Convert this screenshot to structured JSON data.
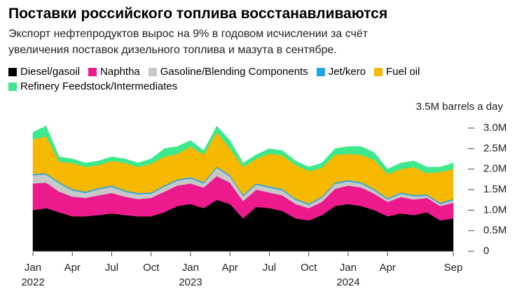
{
  "chart_data": {
    "type": "stacked_area",
    "title": "Поставки российского топлива восстанавливаются",
    "subtitle": [
      "Экспорт нефтепродуктов вырос на 9% в годовом исчислении за счёт",
      "увеличения поставок дизельного топлива и мазута в сентябре."
    ],
    "y_axis_label": "3.5M barrels a day",
    "categories": [
      "Jan",
      null,
      null,
      "Apr",
      null,
      null,
      "Jul",
      null,
      null,
      "Oct",
      null,
      null,
      "Jan",
      null,
      null,
      "Apr",
      null,
      null,
      "Jul",
      null,
      null,
      "Oct",
      null,
      null,
      "Jan",
      null,
      null,
      "Apr",
      null,
      null,
      null,
      null,
      "Sep"
    ],
    "x_year_labels": [
      "2022",
      null,
      null,
      null,
      null,
      null,
      null,
      null,
      null,
      null,
      null,
      null,
      "2023",
      null,
      null,
      null,
      null,
      null,
      null,
      null,
      null,
      null,
      null,
      null,
      "2024",
      null,
      null,
      null,
      null,
      null,
      null,
      null,
      null
    ],
    "series": [
      {
        "name": "Diesel/gasoil",
        "color": "#000000",
        "values": [
          1.0,
          1.05,
          0.95,
          0.85,
          0.85,
          0.88,
          0.92,
          0.88,
          0.85,
          0.85,
          0.95,
          1.1,
          1.15,
          1.05,
          1.25,
          1.15,
          0.8,
          1.08,
          1.05,
          0.98,
          0.8,
          0.75,
          0.88,
          1.1,
          1.15,
          1.1,
          1.0,
          0.85,
          0.92,
          0.88,
          0.95,
          0.75,
          0.8
        ]
      },
      {
        "name": "Naphtha",
        "color": "#ec1a8c",
        "values": [
          0.65,
          0.62,
          0.5,
          0.48,
          0.45,
          0.48,
          0.5,
          0.45,
          0.42,
          0.45,
          0.5,
          0.5,
          0.5,
          0.5,
          0.58,
          0.52,
          0.42,
          0.42,
          0.38,
          0.38,
          0.35,
          0.3,
          0.32,
          0.42,
          0.45,
          0.45,
          0.4,
          0.35,
          0.4,
          0.38,
          0.35,
          0.35,
          0.38
        ]
      },
      {
        "name": "Gasoline/Blending Components",
        "color": "#c8c8c8",
        "values": [
          0.2,
          0.2,
          0.2,
          0.15,
          0.12,
          0.15,
          0.15,
          0.12,
          0.12,
          0.1,
          0.12,
          0.12,
          0.12,
          0.1,
          0.2,
          0.15,
          0.12,
          0.12,
          0.12,
          0.12,
          0.1,
          0.08,
          0.1,
          0.12,
          0.1,
          0.1,
          0.08,
          0.06,
          0.08,
          0.08,
          0.05,
          0.05,
          0.06
        ]
      },
      {
        "name": "Jet/kero",
        "color": "#1ca6e8",
        "values": [
          0.03,
          0.03,
          0.03,
          0.03,
          0.03,
          0.03,
          0.03,
          0.03,
          0.03,
          0.03,
          0.03,
          0.03,
          0.03,
          0.03,
          0.03,
          0.03,
          0.03,
          0.03,
          0.03,
          0.03,
          0.03,
          0.03,
          0.03,
          0.03,
          0.03,
          0.03,
          0.03,
          0.03,
          0.03,
          0.03,
          0.03,
          0.03,
          0.03
        ]
      },
      {
        "name": "Fuel oil",
        "color": "#f7b800",
        "values": [
          0.84,
          0.9,
          0.5,
          0.64,
          0.6,
          0.56,
          0.6,
          0.67,
          0.63,
          0.7,
          0.7,
          0.62,
          0.75,
          0.67,
          0.84,
          0.65,
          0.68,
          0.6,
          0.8,
          0.82,
          0.82,
          0.79,
          0.7,
          0.68,
          0.64,
          0.67,
          0.71,
          0.59,
          0.57,
          0.68,
          0.52,
          0.75,
          0.73
        ]
      },
      {
        "name": "Refinery Feedstock/Intermediates",
        "color": "#3ee88c",
        "values": [
          0.18,
          0.25,
          0.12,
          0.1,
          0.1,
          0.1,
          0.1,
          0.1,
          0.1,
          0.12,
          0.2,
          0.18,
          0.15,
          0.1,
          0.15,
          0.2,
          0.1,
          0.1,
          0.12,
          0.12,
          0.1,
          0.1,
          0.12,
          0.15,
          0.18,
          0.2,
          0.18,
          0.12,
          0.15,
          0.15,
          0.15,
          0.12,
          0.15
        ]
      }
    ],
    "ylim": [
      0,
      3.2
    ],
    "yticks": [
      0,
      {
        "value": 0.5,
        "label": "0.5M"
      },
      {
        "value": 1.0,
        "label": "1.0M"
      },
      {
        "value": 1.5,
        "label": "1.5M"
      },
      {
        "value": 2.0,
        "label": "2.0M"
      },
      {
        "value": 2.5,
        "label": "2.5M"
      },
      {
        "value": 3.0,
        "label": "3.0M"
      }
    ]
  }
}
